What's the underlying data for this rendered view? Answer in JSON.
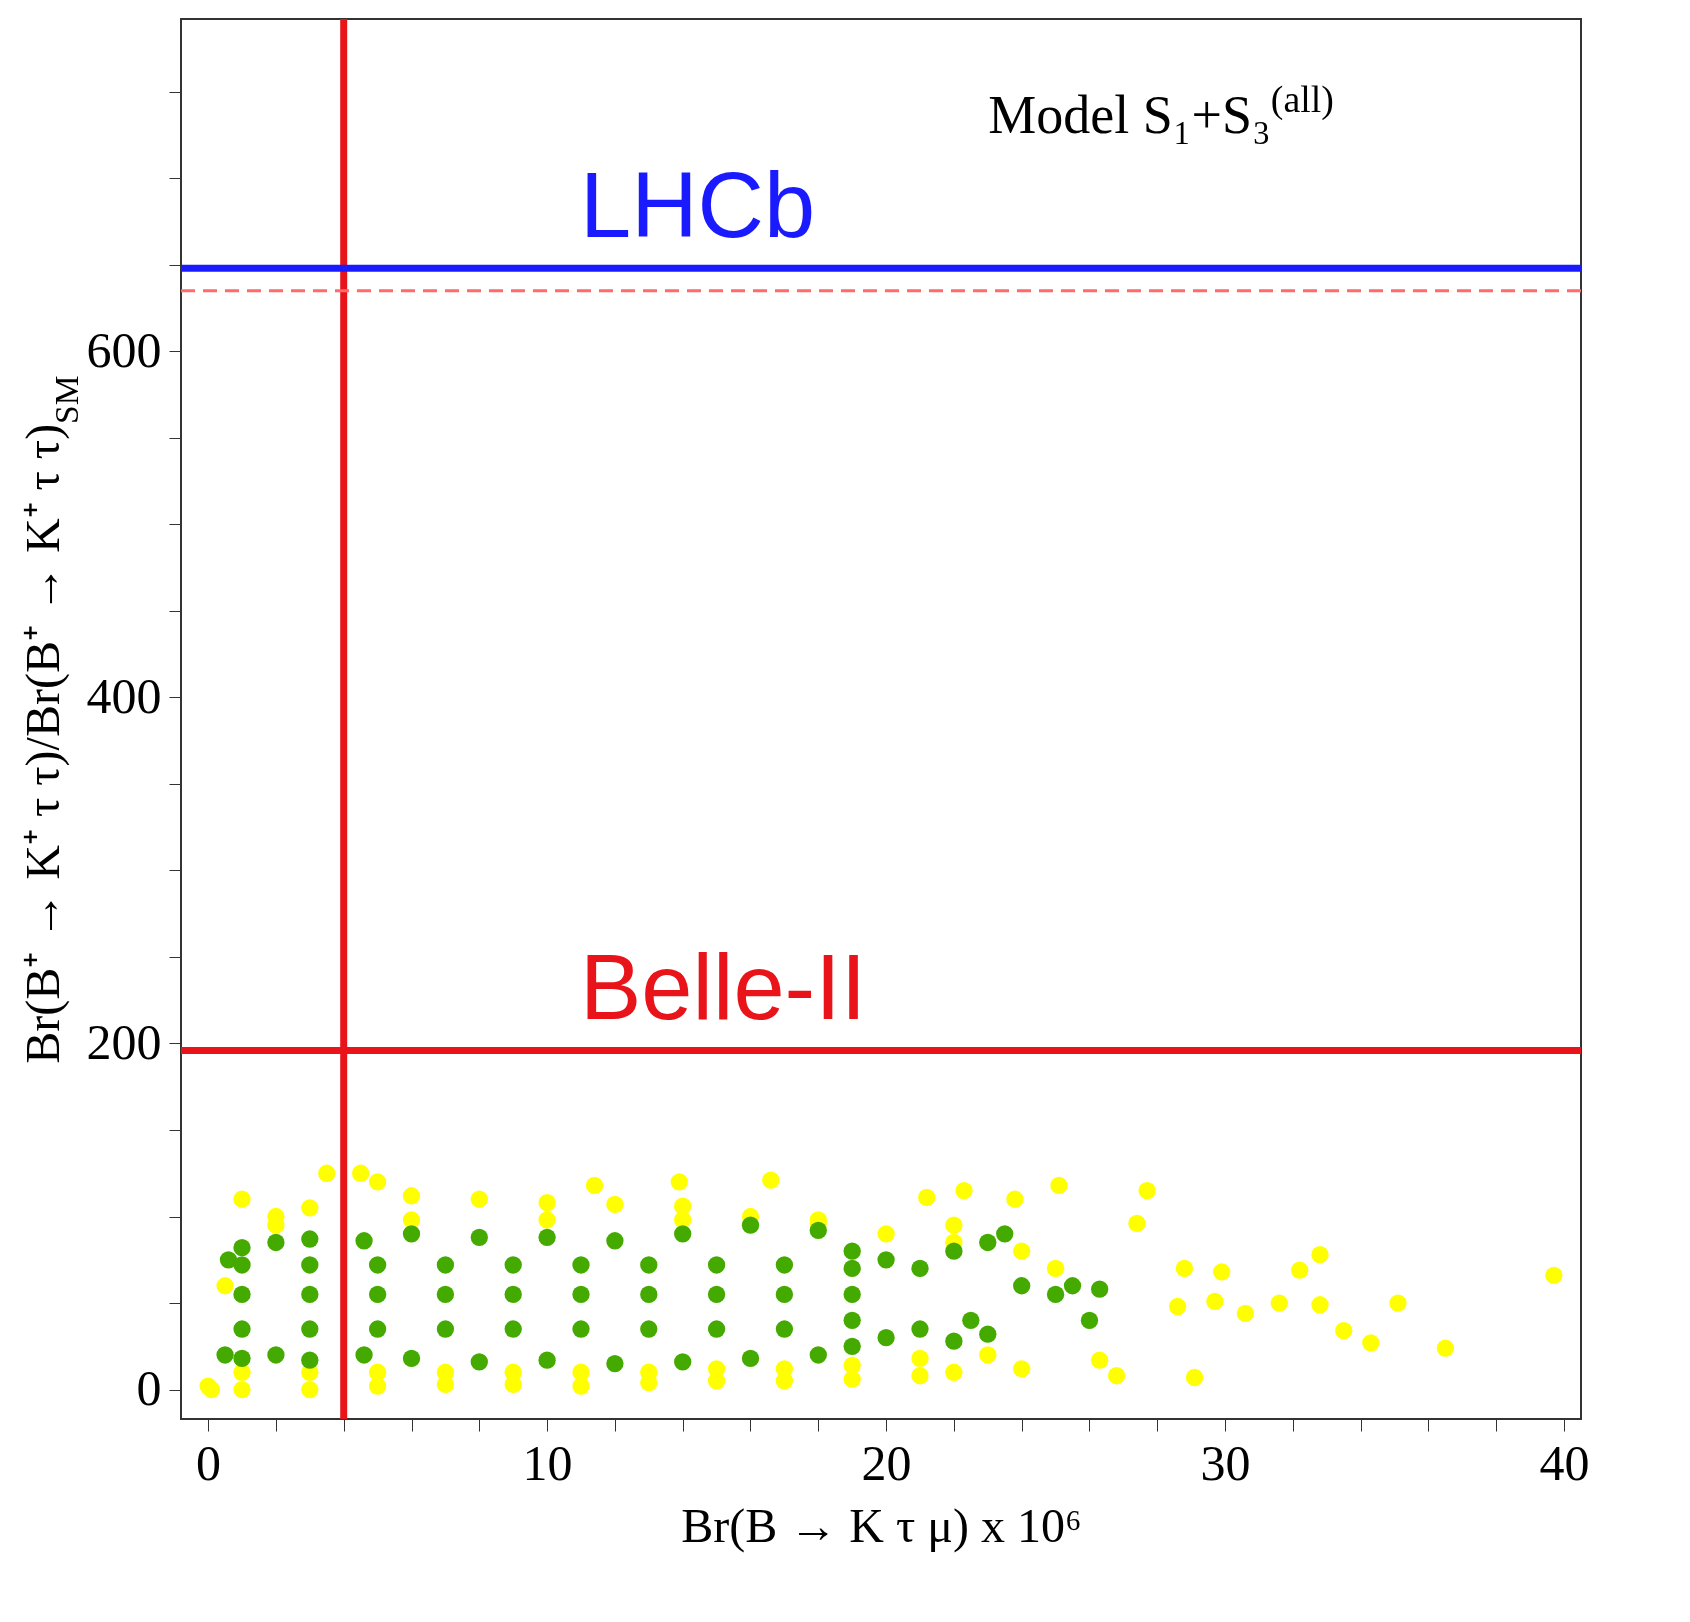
{
  "chart_data": {
    "type": "scatter",
    "xlabel": "Br(B → K τ μ) x 10⁶",
    "ylabel": "Br(B⁺ → K⁺ τ τ)/Br(B⁺ → K⁺ τ τ)$_{SM}$",
    "annotations": [
      "Model S₁+S₃$^{(all)}$"
    ],
    "xlim": [
      -0.8,
      40.5
    ],
    "ylim": [
      -17,
      792
    ],
    "xticks": [
      0,
      {
        "value": 2,
        "label": null
      },
      {
        "value": 4,
        "label": null
      },
      {
        "value": 6,
        "label": null
      },
      {
        "value": 8,
        "label": null
      },
      10,
      {
        "value": 12,
        "label": null
      },
      {
        "value": 14,
        "label": null
      },
      {
        "value": 16,
        "label": null
      },
      {
        "value": 18,
        "label": null
      },
      20,
      {
        "value": 22,
        "label": null
      },
      {
        "value": 24,
        "label": null
      },
      {
        "value": 26,
        "label": null
      },
      {
        "value": 28,
        "label": null
      },
      30,
      {
        "value": 32,
        "label": null
      },
      {
        "value": 34,
        "label": null
      },
      {
        "value": 36,
        "label": null
      },
      {
        "value": 38,
        "label": null
      },
      40
    ],
    "yticks": [
      0,
      {
        "value": 50,
        "label": null
      },
      {
        "value": 100,
        "label": null
      },
      {
        "value": 150,
        "label": null
      },
      200,
      {
        "value": 250,
        "label": null
      },
      {
        "value": 300,
        "label": null
      },
      {
        "value": 350,
        "label": null
      },
      400,
      {
        "value": 450,
        "label": null
      },
      {
        "value": 500,
        "label": null
      },
      {
        "value": 550,
        "label": null
      },
      600,
      {
        "value": 650,
        "label": null
      },
      {
        "value": 700,
        "label": null
      },
      {
        "value": 750,
        "label": null
      }
    ],
    "grid": false,
    "marker": "circle",
    "series": [
      {
        "color": "#ffff00",
        "x": [
          0.1,
          0.5,
          1,
          2,
          3,
          3.5,
          4.5,
          5,
          6,
          8,
          10,
          12,
          14,
          16,
          18,
          20,
          22,
          24,
          25,
          0,
          1,
          3,
          5,
          7,
          9,
          11,
          13,
          15,
          17,
          19,
          21,
          22,
          24,
          1,
          3,
          5,
          7,
          9,
          11,
          13,
          15,
          17,
          19,
          21,
          23,
          2,
          6,
          10,
          14,
          18,
          22,
          39.7,
          36.5,
          35.1,
          34.3,
          33.5,
          32.8,
          32.8,
          32.2,
          31.6,
          30.6,
          29.9,
          29.7,
          29.1,
          28.8,
          28.6,
          27.7,
          27.4,
          26.8,
          26.3,
          25.1,
          23.8,
          22.3,
          21.2,
          16.6,
          13.9,
          11.4
        ],
        "values": [
          0,
          60,
          110,
          100,
          105,
          125,
          125,
          120,
          112,
          110,
          108,
          107,
          106,
          100,
          98,
          90,
          85,
          80,
          70,
          2,
          0,
          0,
          2,
          3,
          3,
          2,
          4,
          5,
          5,
          6,
          8,
          10,
          12,
          10,
          10,
          10,
          10,
          10,
          10,
          10,
          12,
          12,
          14,
          18,
          20,
          95,
          98,
          98,
          98,
          96,
          95,
          66,
          24,
          50,
          27,
          34,
          78,
          49,
          69,
          50,
          44,
          68,
          51,
          7,
          70,
          48,
          115,
          96,
          8,
          17,
          118,
          110,
          115,
          111,
          121,
          120,
          118
        ]
      },
      {
        "color": "#44aa00",
        "x": [
          0.6,
          1,
          2,
          3,
          4.6,
          6,
          8,
          10,
          12,
          14,
          16,
          18,
          19,
          20,
          21,
          22,
          23,
          0.5,
          1,
          2,
          3,
          4.6,
          6,
          8,
          10,
          12,
          14,
          16,
          18,
          19,
          20,
          21,
          22,
          1,
          3,
          5,
          7,
          9,
          11,
          13,
          15,
          17,
          19,
          1,
          3,
          5,
          7,
          9,
          11,
          13,
          15,
          17,
          19,
          1,
          3,
          5,
          7,
          9,
          11,
          13,
          15,
          17,
          19,
          23.5,
          24,
          25,
          25.5,
          26,
          26.3,
          22.5,
          23
        ],
        "values": [
          75,
          82,
          85,
          87,
          86,
          90,
          88,
          88,
          86,
          90,
          95,
          92,
          80,
          75,
          70,
          80,
          85,
          20,
          18,
          20,
          17,
          20,
          18,
          16,
          17,
          15,
          16,
          18,
          20,
          25,
          30,
          35,
          28,
          35,
          35,
          35,
          35,
          35,
          35,
          35,
          35,
          35,
          40,
          55,
          55,
          55,
          55,
          55,
          55,
          55,
          55,
          55,
          55,
          72,
          72,
          72,
          72,
          72,
          72,
          72,
          72,
          72,
          70,
          90,
          60,
          55,
          60,
          40,
          58,
          40,
          32
        ]
      }
    ],
    "ref_lines": [
      {
        "axis": "x",
        "value": 4,
        "color": "#e8141a"
      },
      {
        "axis": "y",
        "value": 196,
        "label": "Belle-II",
        "color": "#e8141a"
      },
      {
        "axis": "y",
        "value": 648,
        "label": "LHCb",
        "color": "#1a1aff"
      },
      {
        "axis": "y",
        "value": 635,
        "color": "#ff6a6a",
        "line_style": "dashed"
      }
    ]
  }
}
